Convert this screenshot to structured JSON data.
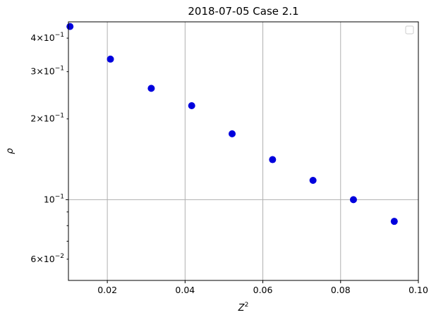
{
  "chart_data": {
    "type": "scatter",
    "title": "2018-07-05 Case 2.1",
    "xlabel": {
      "base": "Z",
      "sup": "2"
    },
    "ylabel": "ρ",
    "xlim": [
      0.01,
      0.1
    ],
    "ylim": [
      0.05,
      0.46
    ],
    "yscale": "log",
    "grid": true,
    "legend": "top-right",
    "point_color": "#0000dd",
    "x_ticks": [
      {
        "value": 0.02,
        "label": "0.02"
      },
      {
        "value": 0.04,
        "label": "0.04"
      },
      {
        "value": 0.06,
        "label": "0.06"
      },
      {
        "value": 0.08,
        "label": "0.08"
      },
      {
        "value": 0.1,
        "label": "0.10"
      }
    ],
    "y_major_ticks": [
      {
        "value": 0.1,
        "mantissa": "10",
        "exp": "−1"
      }
    ],
    "y_minor_labeled_ticks": [
      {
        "value": 0.06,
        "mantissa": "6",
        "exp": "−2"
      },
      {
        "value": 0.2,
        "mantissa": "2",
        "exp": "−1"
      },
      {
        "value": 0.3,
        "mantissa": "3",
        "exp": "−1"
      },
      {
        "value": 0.4,
        "mantissa": "4",
        "exp": "−1"
      }
    ],
    "y_minor_unlabeled_ticks": [
      0.07,
      0.08,
      0.09
    ],
    "x": [
      0.0104,
      0.0208,
      0.0313,
      0.0417,
      0.0521,
      0.0625,
      0.0729,
      0.0833,
      0.0938
    ],
    "y": [
      0.442,
      0.334,
      0.26,
      0.224,
      0.176,
      0.141,
      0.118,
      0.1,
      0.083
    ]
  }
}
